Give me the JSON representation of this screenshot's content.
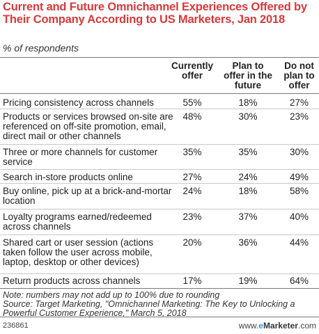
{
  "chart_data": {
    "type": "table",
    "title": "Current and Future Omnichannel Experiences Offered by Their Company According to US Marketers, Jan 2018",
    "subtitle": "% of respondents",
    "columns": [
      "Currently offer",
      "Plan to offer in the future",
      "Do not plan to offer"
    ],
    "rows": [
      {
        "label": "Pricing consistency across channels",
        "values": [
          "55%",
          "18%",
          "27%"
        ]
      },
      {
        "label": "Products or services browsed on-site are referenced on off-site promotion, email, direct mail or other channels",
        "values": [
          "48%",
          "30%",
          "23%"
        ]
      },
      {
        "label": "Three or more channels for customer service",
        "values": [
          "35%",
          "35%",
          "30%"
        ]
      },
      {
        "label": "Search in-store products online",
        "values": [
          "27%",
          "24%",
          "49%"
        ]
      },
      {
        "label": "Buy online, pick up at a brick-and-mortar location",
        "values": [
          "24%",
          "18%",
          "58%"
        ]
      },
      {
        "label": "Loyalty programs earned/redeemed across channels",
        "values": [
          "23%",
          "37%",
          "40%"
        ]
      },
      {
        "label": "Shared cart or user session (actions taken follow the user across mobile, laptop, desktop or other devices)",
        "values": [
          "20%",
          "36%",
          "44%"
        ]
      },
      {
        "label": "Return products across channels",
        "values": [
          "17%",
          "19%",
          "64%"
        ]
      }
    ],
    "note": "Note: numbers may not add up to 100% due to rounding",
    "source": "Source: Target Marketing, \"Omnichannel Marketing: The Key to Unlocking a Powerful Customer Experience,\" March 5, 2018"
  },
  "footer": {
    "id": "236861",
    "brand_prefix": "www.",
    "brand_e": "e",
    "brand_name": "Marketer",
    "brand_suffix": ".com"
  },
  "colors": {
    "title": "#d8393a",
    "brand_accent": "#2d9bd6",
    "rule": "#777777",
    "row_separator": "#c8c8c8"
  }
}
